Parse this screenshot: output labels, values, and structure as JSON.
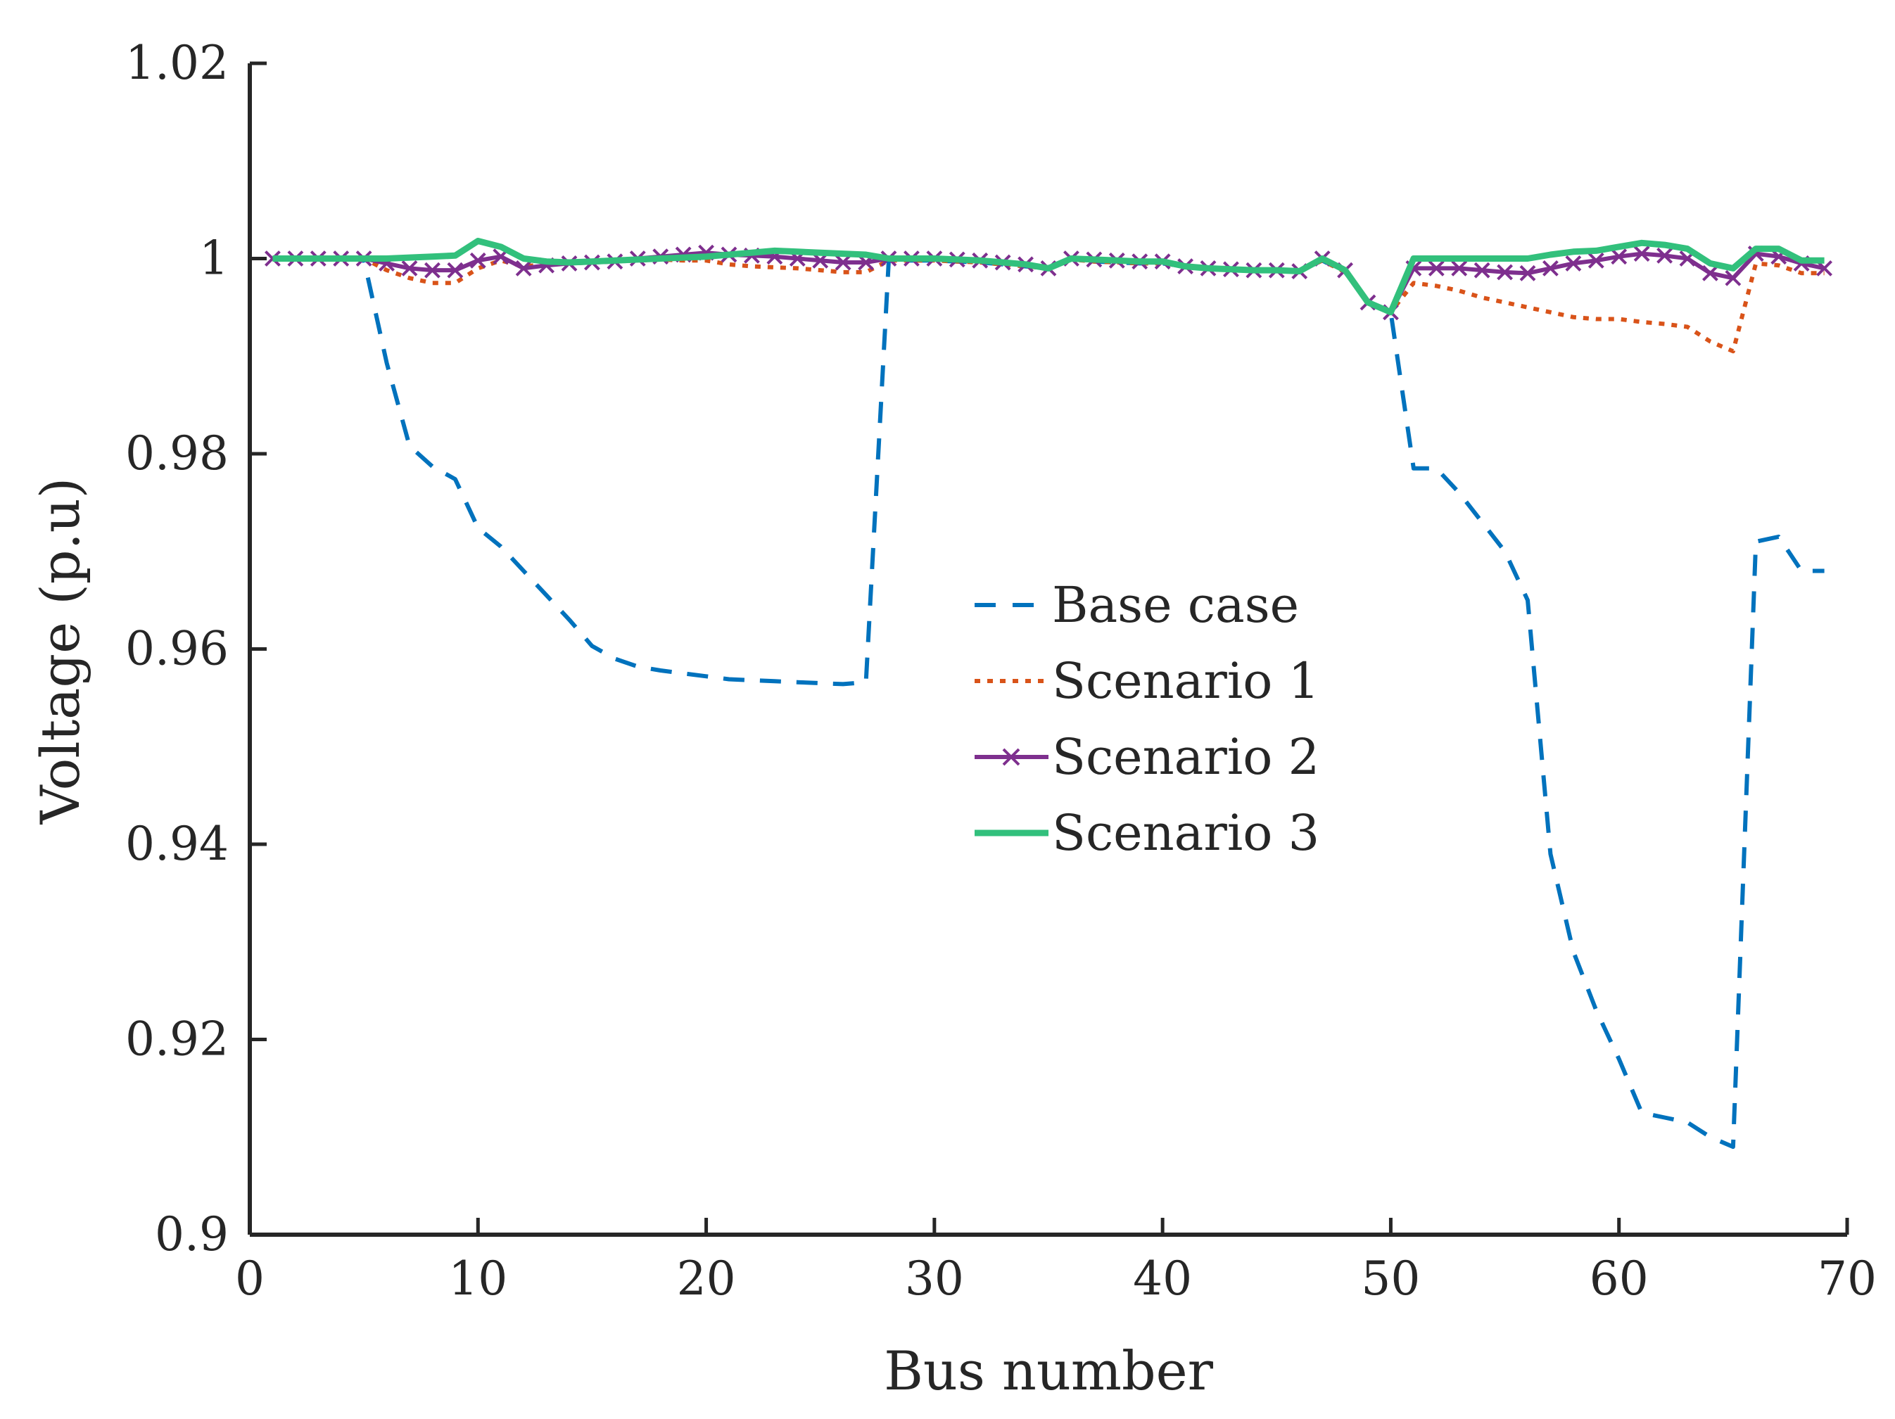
{
  "chart_data": {
    "type": "line",
    "title": "",
    "xlabel": "Bus number",
    "ylabel": "Voltage (p.u)",
    "xlim": [
      0,
      70
    ],
    "ylim": [
      0.9,
      1.02
    ],
    "xticks": [
      0,
      10,
      20,
      30,
      40,
      50,
      60,
      70
    ],
    "xtick_labels": [
      "0",
      "10",
      "20",
      "30",
      "40",
      "50",
      "60",
      "70"
    ],
    "yticks": [
      0.9,
      0.92,
      0.94,
      0.96,
      0.98,
      1.0,
      1.02
    ],
    "ytick_labels": [
      "0.9",
      "0.92",
      "0.94",
      "0.96",
      "0.98",
      "1",
      "1.02"
    ],
    "grid": false,
    "legend_position": "center",
    "x": [
      1,
      2,
      3,
      4,
      5,
      6,
      7,
      8,
      9,
      10,
      11,
      12,
      13,
      14,
      15,
      16,
      17,
      18,
      19,
      20,
      21,
      22,
      23,
      24,
      25,
      26,
      27,
      28,
      29,
      30,
      31,
      32,
      33,
      34,
      35,
      36,
      37,
      38,
      39,
      40,
      41,
      42,
      43,
      44,
      45,
      46,
      47,
      48,
      49,
      50,
      51,
      52,
      53,
      54,
      55,
      56,
      57,
      58,
      59,
      60,
      61,
      62,
      63,
      64,
      65,
      66,
      67,
      68,
      69
    ],
    "series": [
      {
        "name": "Base case",
        "color": "#0072BD",
        "style": "dashed",
        "marker": "none",
        "values": [
          1.0,
          1.0,
          1.0,
          1.0,
          0.9999,
          0.9893,
          0.9808,
          0.9787,
          0.9774,
          0.9724,
          0.9705,
          0.968,
          0.9655,
          0.963,
          0.9603,
          0.959,
          0.9582,
          0.9578,
          0.9575,
          0.9572,
          0.9569,
          0.9568,
          0.9567,
          0.9566,
          0.9565,
          0.9564,
          0.9566,
          0.9998,
          0.9998,
          0.9998,
          0.9997,
          0.9996,
          0.9994,
          0.9992,
          0.999,
          0.9999,
          0.9997,
          0.9996,
          0.9995,
          0.9995,
          0.9992,
          0.999,
          0.9989,
          0.9988,
          0.9988,
          0.9987,
          0.9998,
          0.9986,
          0.9955,
          0.9945,
          0.9785,
          0.9785,
          0.976,
          0.973,
          0.97,
          0.965,
          0.939,
          0.929,
          0.923,
          0.918,
          0.9125,
          0.912,
          0.9115,
          0.91,
          0.909,
          0.971,
          0.9715,
          0.968,
          0.968
        ]
      },
      {
        "name": "Scenario 1",
        "color": "#D95319",
        "style": "dotted",
        "marker": "none",
        "values": [
          1.0,
          1.0,
          1.0,
          1.0,
          1.0,
          0.9988,
          0.998,
          0.9975,
          0.9975,
          0.999,
          0.9998,
          0.9992,
          0.9994,
          0.9995,
          0.9996,
          0.9997,
          0.9998,
          0.9999,
          0.9998,
          0.9998,
          0.9994,
          0.9992,
          0.9991,
          0.999,
          0.9988,
          0.9986,
          0.9986,
          0.9998,
          0.9998,
          0.9998,
          0.9997,
          0.9996,
          0.9994,
          0.9992,
          0.999,
          0.9999,
          0.9997,
          0.9996,
          0.9995,
          0.9995,
          0.9992,
          0.999,
          0.9989,
          0.9988,
          0.9988,
          0.9987,
          0.9998,
          0.9986,
          0.9955,
          0.9945,
          0.9975,
          0.9972,
          0.9967,
          0.996,
          0.9955,
          0.995,
          0.9945,
          0.994,
          0.9938,
          0.9938,
          0.9935,
          0.9933,
          0.993,
          0.9915,
          0.9905,
          0.9995,
          0.9993,
          0.9985,
          0.9985
        ]
      },
      {
        "name": "Scenario 2",
        "color": "#7E2F8E",
        "style": "solid",
        "marker": "x",
        "values": [
          1.0,
          1.0,
          1.0,
          1.0,
          1.0,
          0.9995,
          0.999,
          0.9988,
          0.9988,
          0.9998,
          1.0002,
          0.999,
          0.9993,
          0.9995,
          0.9996,
          0.9997,
          1.0,
          1.0002,
          1.0004,
          1.0006,
          1.0004,
          1.0003,
          1.0002,
          1.0,
          0.9998,
          0.9996,
          0.9996,
          1.0,
          1.0,
          1.0,
          0.9999,
          0.9998,
          0.9996,
          0.9994,
          0.999,
          1.0,
          0.9999,
          0.9998,
          0.9997,
          0.9997,
          0.9992,
          0.999,
          0.9989,
          0.9988,
          0.9988,
          0.9987,
          1.0,
          0.9988,
          0.9955,
          0.9945,
          0.999,
          0.999,
          0.999,
          0.9988,
          0.9986,
          0.9985,
          0.999,
          0.9995,
          0.9998,
          1.0002,
          1.0005,
          1.0003,
          1.0,
          0.9985,
          0.998,
          1.0005,
          1.0002,
          0.9995,
          0.999
        ]
      },
      {
        "name": "Scenario 3",
        "color": "#32C07C",
        "style": "solid",
        "marker": "none",
        "values": [
          1.0,
          1.0,
          1.0,
          1.0,
          1.0,
          1.0,
          1.0001,
          1.0002,
          1.0003,
          1.0018,
          1.0012,
          1.0,
          0.9997,
          0.9996,
          0.9997,
          0.9998,
          0.9999,
          1.0,
          1.0001,
          1.0002,
          1.0004,
          1.0006,
          1.0008,
          1.0007,
          1.0006,
          1.0005,
          1.0004,
          1.0,
          1.0,
          1.0,
          0.9999,
          0.9998,
          0.9996,
          0.9994,
          0.999,
          1.0,
          0.9999,
          0.9998,
          0.9997,
          0.9997,
          0.9992,
          0.999,
          0.9989,
          0.9988,
          0.9988,
          0.9987,
          1.0,
          0.9988,
          0.9955,
          0.9945,
          1.0,
          1.0,
          1.0,
          1.0,
          1.0,
          1.0,
          1.0004,
          1.0007,
          1.0008,
          1.0012,
          1.0016,
          1.0014,
          1.001,
          0.9995,
          0.999,
          1.001,
          1.001,
          0.9998,
          0.9998
        ]
      }
    ]
  }
}
